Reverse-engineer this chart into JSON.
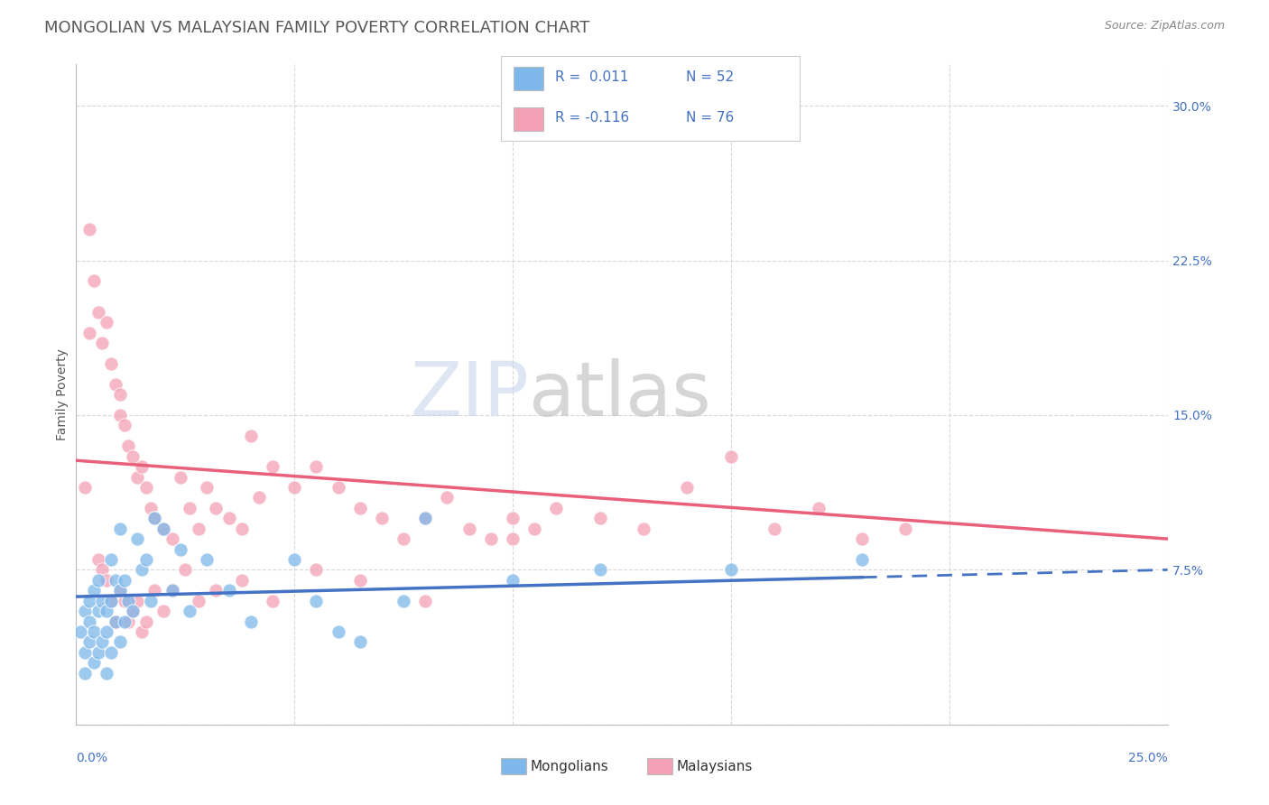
{
  "title": "MONGOLIAN VS MALAYSIAN FAMILY POVERTY CORRELATION CHART",
  "source": "Source: ZipAtlas.com",
  "ylabel": "Family Poverty",
  "xlim": [
    0.0,
    0.25
  ],
  "ylim": [
    0.0,
    0.32
  ],
  "mongolians_color": "#7EB8EA",
  "malaysians_color": "#F4A0B5",
  "trend_mongolians_color": "#4472C4",
  "trend_malaysians_color": "#E8607A",
  "axis_label_color": "#4472C4",
  "title_color": "#595959",
  "grid_color": "#D0D0D0",
  "background_color": "#FFFFFF",
  "mong_x": [
    0.001,
    0.002,
    0.002,
    0.002,
    0.003,
    0.003,
    0.003,
    0.004,
    0.004,
    0.004,
    0.005,
    0.005,
    0.005,
    0.006,
    0.006,
    0.007,
    0.007,
    0.007,
    0.008,
    0.008,
    0.008,
    0.009,
    0.009,
    0.01,
    0.01,
    0.01,
    0.011,
    0.011,
    0.012,
    0.013,
    0.014,
    0.015,
    0.016,
    0.017,
    0.018,
    0.02,
    0.022,
    0.024,
    0.026,
    0.03,
    0.035,
    0.04,
    0.05,
    0.055,
    0.06,
    0.065,
    0.075,
    0.08,
    0.1,
    0.12,
    0.15,
    0.18
  ],
  "mong_y": [
    0.045,
    0.055,
    0.035,
    0.025,
    0.05,
    0.06,
    0.04,
    0.03,
    0.065,
    0.045,
    0.055,
    0.035,
    0.07,
    0.04,
    0.06,
    0.025,
    0.055,
    0.045,
    0.08,
    0.06,
    0.035,
    0.05,
    0.07,
    0.065,
    0.04,
    0.095,
    0.05,
    0.07,
    0.06,
    0.055,
    0.09,
    0.075,
    0.08,
    0.06,
    0.1,
    0.095,
    0.065,
    0.085,
    0.055,
    0.08,
    0.065,
    0.05,
    0.08,
    0.06,
    0.045,
    0.04,
    0.06,
    0.1,
    0.07,
    0.075,
    0.075,
    0.08
  ],
  "malay_x": [
    0.002,
    0.003,
    0.003,
    0.004,
    0.005,
    0.006,
    0.007,
    0.008,
    0.009,
    0.01,
    0.01,
    0.011,
    0.012,
    0.013,
    0.014,
    0.015,
    0.016,
    0.017,
    0.018,
    0.02,
    0.022,
    0.024,
    0.026,
    0.028,
    0.03,
    0.032,
    0.035,
    0.038,
    0.04,
    0.042,
    0.045,
    0.05,
    0.055,
    0.06,
    0.065,
    0.07,
    0.075,
    0.08,
    0.085,
    0.09,
    0.095,
    0.1,
    0.105,
    0.11,
    0.12,
    0.13,
    0.14,
    0.15,
    0.16,
    0.17,
    0.18,
    0.19,
    0.005,
    0.006,
    0.007,
    0.008,
    0.009,
    0.01,
    0.011,
    0.012,
    0.013,
    0.014,
    0.015,
    0.016,
    0.018,
    0.02,
    0.022,
    0.025,
    0.028,
    0.032,
    0.038,
    0.045,
    0.055,
    0.065,
    0.08,
    0.1
  ],
  "malay_y": [
    0.115,
    0.19,
    0.24,
    0.215,
    0.2,
    0.185,
    0.195,
    0.175,
    0.165,
    0.16,
    0.15,
    0.145,
    0.135,
    0.13,
    0.12,
    0.125,
    0.115,
    0.105,
    0.1,
    0.095,
    0.09,
    0.12,
    0.105,
    0.095,
    0.115,
    0.105,
    0.1,
    0.095,
    0.14,
    0.11,
    0.125,
    0.115,
    0.125,
    0.115,
    0.105,
    0.1,
    0.09,
    0.1,
    0.11,
    0.095,
    0.09,
    0.1,
    0.095,
    0.105,
    0.1,
    0.095,
    0.115,
    0.13,
    0.095,
    0.105,
    0.09,
    0.095,
    0.08,
    0.075,
    0.07,
    0.06,
    0.05,
    0.065,
    0.06,
    0.05,
    0.055,
    0.06,
    0.045,
    0.05,
    0.065,
    0.055,
    0.065,
    0.075,
    0.06,
    0.065,
    0.07,
    0.06,
    0.075,
    0.07,
    0.06,
    0.09
  ],
  "mong_trend_x0": 0.0,
  "mong_trend_x1": 0.25,
  "mong_trend_y0": 0.062,
  "mong_trend_y1": 0.075,
  "malay_trend_x0": 0.0,
  "malay_trend_x1": 0.25,
  "malay_trend_y0": 0.128,
  "malay_trend_y1": 0.09
}
